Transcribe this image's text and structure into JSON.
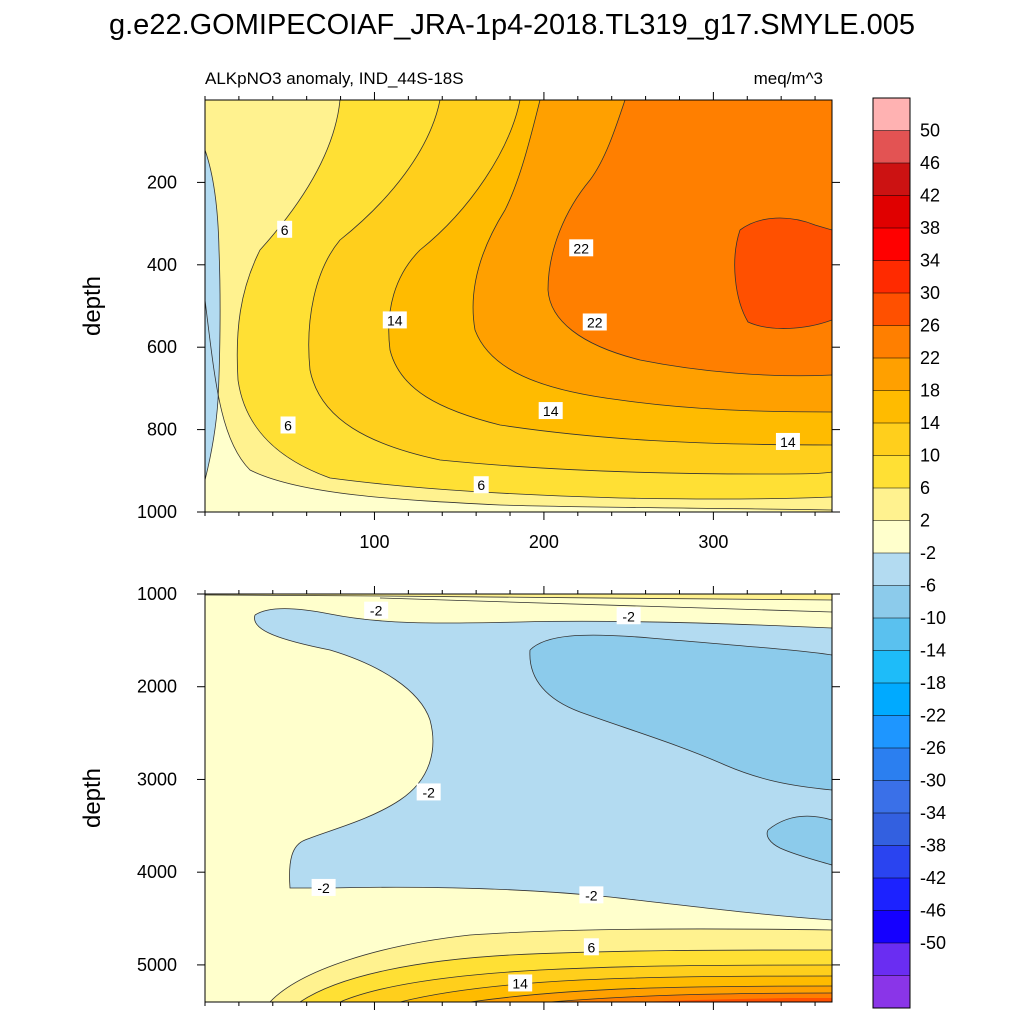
{
  "figure": {
    "title": "g.e22.GOMIPECOIAF_JRA-1p4-2018.TL319_g17.SMYLE.005"
  },
  "chart_data": [
    {
      "type": "heatmap",
      "panel": "upper",
      "title_left": "ALKpNO3 anomaly, IND_44S-18S",
      "title_right": "meq/m^3",
      "xlabel": "",
      "ylabel": "depth",
      "xlim": [
        0,
        370
      ],
      "ylim": [
        1000,
        0
      ],
      "xticks": [
        100,
        200,
        300
      ],
      "yticks": [
        200,
        400,
        600,
        800,
        1000
      ],
      "contour_labels": [
        {
          "text": "6",
          "x": 47,
          "y": 315
        },
        {
          "text": "14",
          "x": 112,
          "y": 535
        },
        {
          "text": "22",
          "x": 222,
          "y": 360
        },
        {
          "text": "22",
          "x": 230,
          "y": 540
        },
        {
          "text": "6",
          "x": 49,
          "y": 790
        },
        {
          "text": "14",
          "x": 204,
          "y": 755
        },
        {
          "text": "14",
          "x": 344,
          "y": 830
        },
        {
          "text": "6",
          "x": 163,
          "y": 935
        }
      ],
      "field_description": {
        "color_field": "anomaly increases eastward and upward; -2..2 near x=0, up to 26..30 near x=330, depth 400-550",
        "levels": [
          -2,
          2,
          6,
          10,
          14,
          18,
          22,
          26
        ]
      }
    },
    {
      "type": "heatmap",
      "panel": "lower",
      "xlabel": "",
      "ylabel": "depth",
      "xlim": [
        0,
        370
      ],
      "ylim": [
        5400,
        1000
      ],
      "xticks": [
        100,
        200,
        300
      ],
      "yticks": [
        1000,
        2000,
        3000,
        4000,
        5000
      ],
      "contour_labels": [
        {
          "text": "-2",
          "x": 101,
          "y": 1180
        },
        {
          "text": "-2",
          "x": 250,
          "y": 1240
        },
        {
          "text": "-2",
          "x": 132,
          "y": 3140
        },
        {
          "text": "-2",
          "x": 70,
          "y": 4170
        },
        {
          "text": "-2",
          "x": 228,
          "y": 4250
        },
        {
          "text": "6",
          "x": 228,
          "y": 4810
        },
        {
          "text": "14",
          "x": 186,
          "y": 5200
        }
      ],
      "field_description": {
        "color_field": "-6..-2 mid-depth core from x=30 to 370; -10..-6 pocket near x=200-370, depth 1500-2800; positive bottom layer 2..30 rising toward bottom-right",
        "levels": [
          -10,
          -6,
          -2,
          2,
          6,
          10,
          14,
          18,
          22,
          26
        ]
      }
    }
  ],
  "colorbar": {
    "labels": [
      "50",
      "46",
      "42",
      "38",
      "34",
      "30",
      "26",
      "22",
      "18",
      "14",
      "10",
      "6",
      "2",
      "-2",
      "-6",
      "-10",
      "-14",
      "-18",
      "-22",
      "-26",
      "-30",
      "-34",
      "-38",
      "-42",
      "-46",
      "-50"
    ],
    "colors": [
      "#ffb2b2",
      "#e35353",
      "#cc1212",
      "#e00000",
      "#ff0000",
      "#ff2a00",
      "#ff5000",
      "#ff7f00",
      "#ffa000",
      "#ffbb00",
      "#ffcf1c",
      "#ffe034",
      "#fff28f",
      "#ffffcc",
      "#b3dbf1",
      "#8ccbeb",
      "#5ac1ef",
      "#1ebcf9",
      "#00aaff",
      "#1e96ff",
      "#2b7ff0",
      "#3a70e8",
      "#3360e0",
      "#2a44f0",
      "#1c22ff",
      "#1500ff",
      "#6a2df2",
      "#8a35e8"
    ]
  }
}
